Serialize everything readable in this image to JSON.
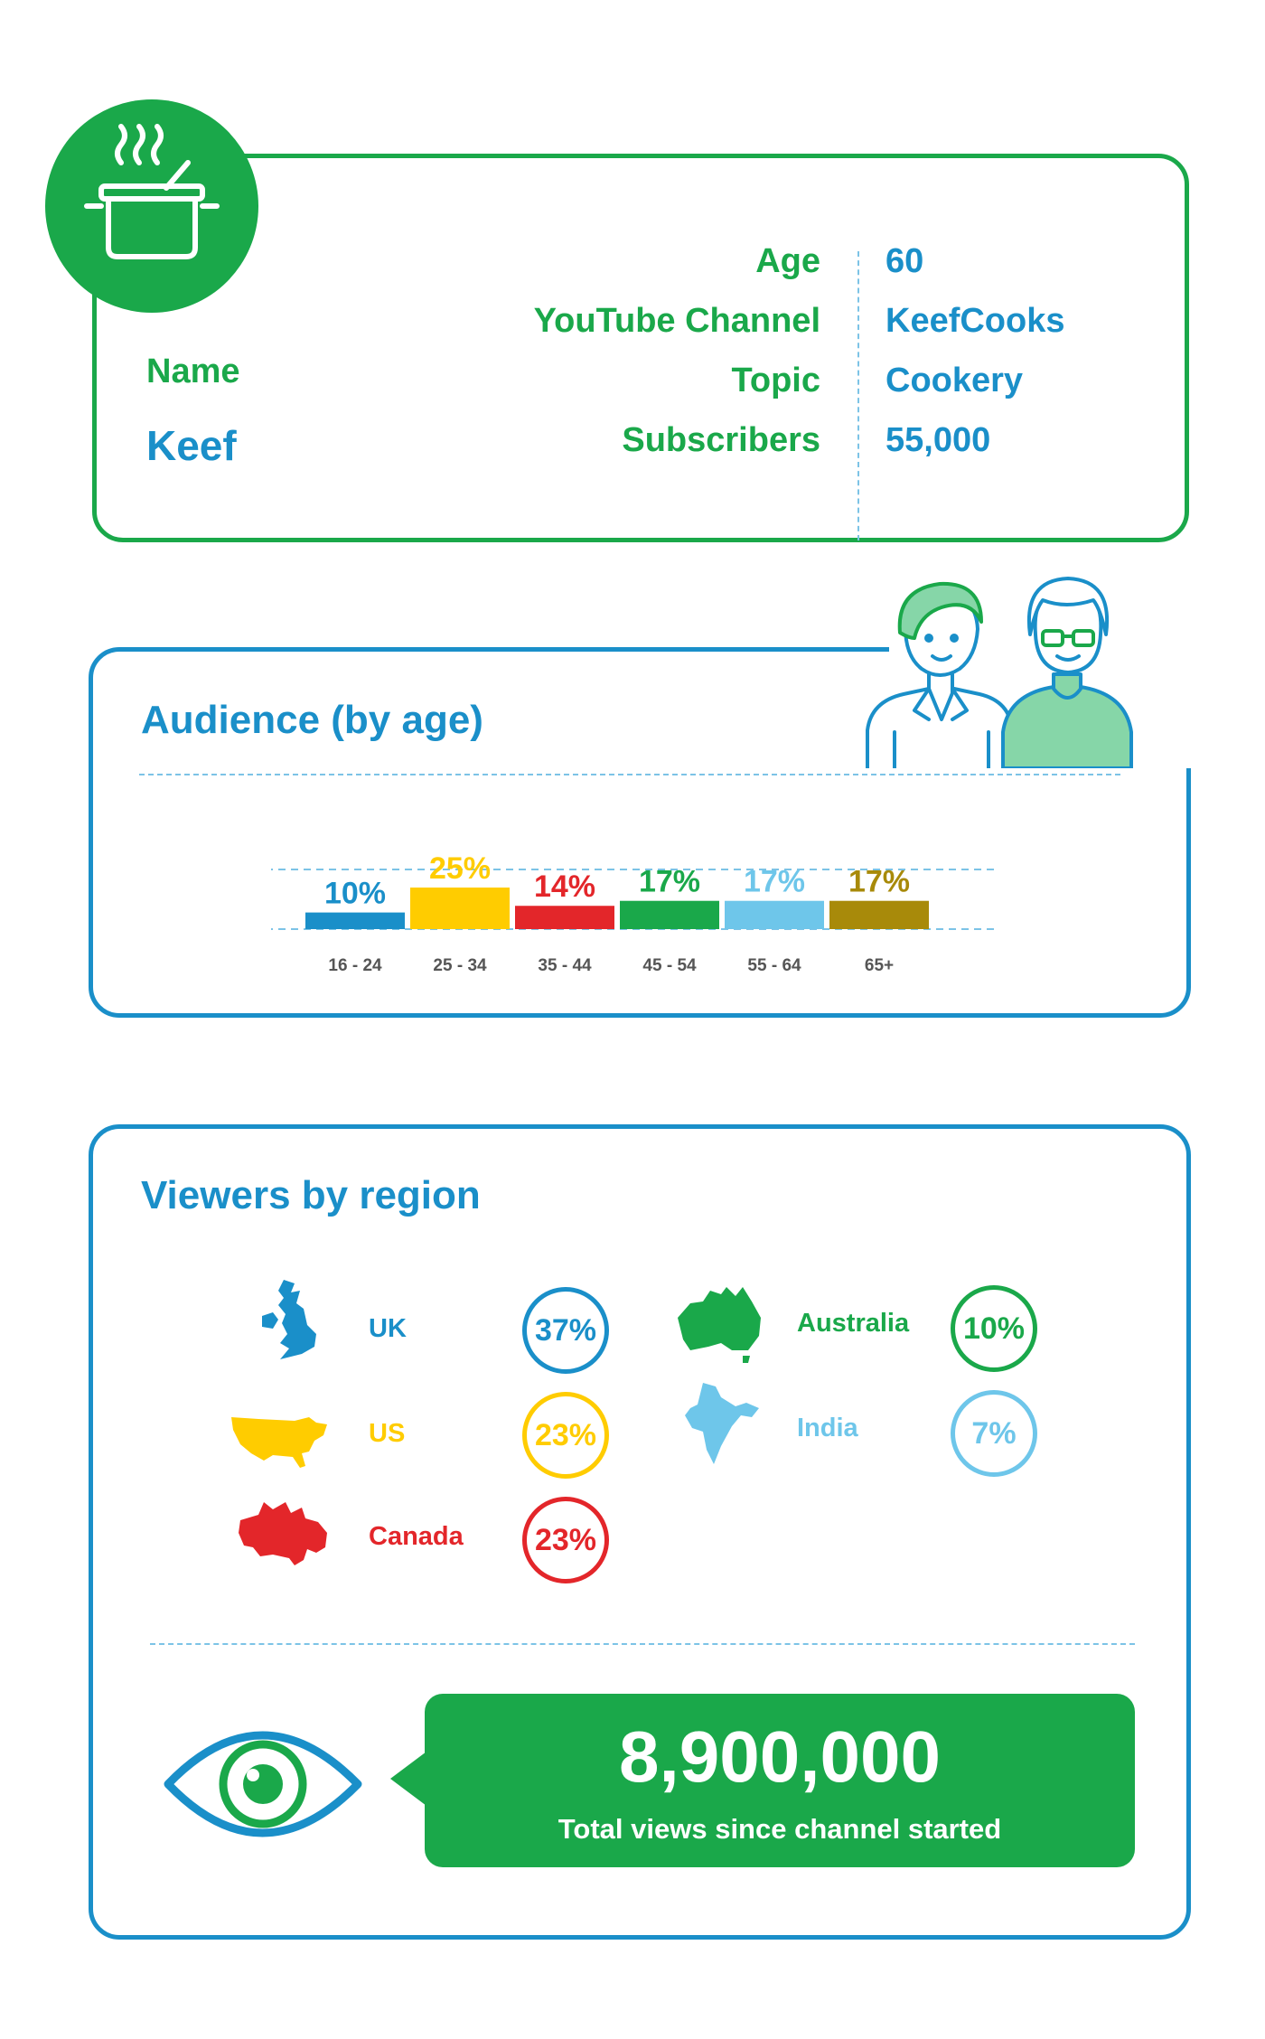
{
  "profile": {
    "name_label": "Name",
    "name_value": "Keef",
    "fields": [
      {
        "label": "Age",
        "value": "60"
      },
      {
        "label": "YouTube Channel",
        "value": "KeefCooks"
      },
      {
        "label": "Topic",
        "value": "Cookery"
      },
      {
        "label": "Subscribers",
        "value": "55,000"
      }
    ],
    "icon": "cooking-pot-icon"
  },
  "audience": {
    "title": "Audience (by age)",
    "icons": [
      "young-woman-icon",
      "older-woman-icon"
    ]
  },
  "chart_data": {
    "type": "bar",
    "title": "Audience (by age)",
    "categories": [
      "16 - 24",
      "25 - 34",
      "35 - 44",
      "45 - 54",
      "55 - 64",
      "65+"
    ],
    "values": [
      10,
      25,
      14,
      17,
      17,
      17
    ],
    "value_labels": [
      "10%",
      "25%",
      "14%",
      "17%",
      "17%",
      "17%"
    ],
    "colors": [
      "#1a8fc9",
      "#ffcc00",
      "#e3262a",
      "#1aa84a",
      "#6ec6ea",
      "#a88a0a"
    ],
    "xlabel": "",
    "ylabel": "",
    "ylim": [
      0,
      25
    ],
    "grid": true
  },
  "regions": {
    "title": "Viewers by region",
    "items": [
      {
        "name": "UK",
        "pct": "37%",
        "color": "#1a8fc9",
        "icon": "uk-map-icon"
      },
      {
        "name": "US",
        "pct": "23%",
        "color": "#ffcc00",
        "icon": "us-map-icon"
      },
      {
        "name": "Canada",
        "pct": "23%",
        "color": "#e3262a",
        "icon": "canada-map-icon"
      },
      {
        "name": "Australia",
        "pct": "10%",
        "color": "#1aa84a",
        "icon": "australia-map-icon"
      },
      {
        "name": "India",
        "pct": "7%",
        "color": "#6ec6ea",
        "icon": "india-map-icon"
      }
    ]
  },
  "views": {
    "total": "8,900,000",
    "caption": "Total views since channel started",
    "icon": "eye-icon"
  }
}
